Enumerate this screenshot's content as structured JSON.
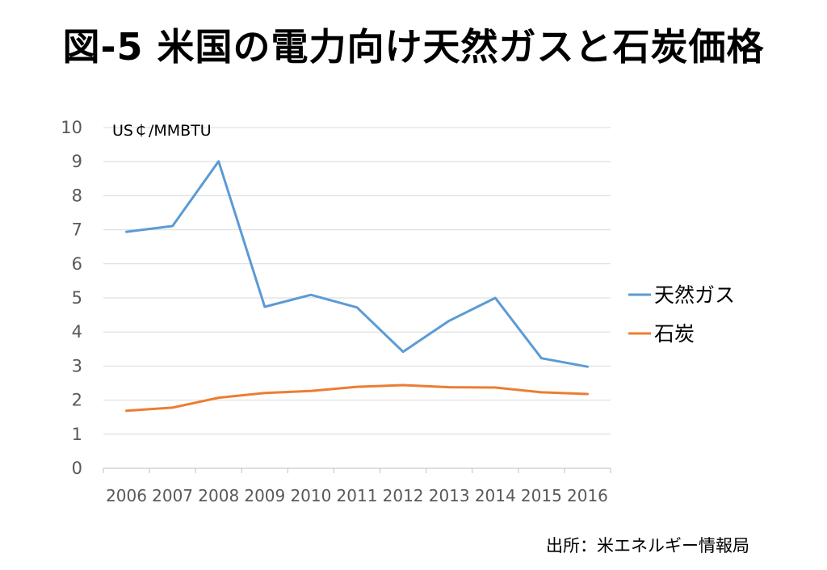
{
  "title": "図-5 米国の電力向け天然ガスと石炭価格",
  "source": "出所：米エネルギー情報局",
  "chart_data": {
    "type": "line",
    "unit_label": "US￠/MMBTU",
    "categories": [
      "2006",
      "2007",
      "2008",
      "2009",
      "2010",
      "2011",
      "2012",
      "2013",
      "2014",
      "2015",
      "2016"
    ],
    "series": [
      {
        "name": "天然ガス",
        "color": "#5b9bd5",
        "values": [
          6.94,
          7.11,
          9.01,
          4.74,
          5.09,
          4.72,
          3.42,
          4.33,
          5.0,
          3.23,
          2.98
        ]
      },
      {
        "name": "石炭",
        "color": "#ed7d31",
        "values": [
          1.69,
          1.78,
          2.07,
          2.21,
          2.27,
          2.39,
          2.44,
          2.38,
          2.37,
          2.23,
          2.18
        ]
      }
    ],
    "ylim": [
      0,
      10
    ],
    "yticks": [
      "0",
      "1",
      "2",
      "3",
      "4",
      "5",
      "6",
      "7",
      "8",
      "9",
      "10"
    ],
    "grid": true,
    "legend_position": "right"
  }
}
